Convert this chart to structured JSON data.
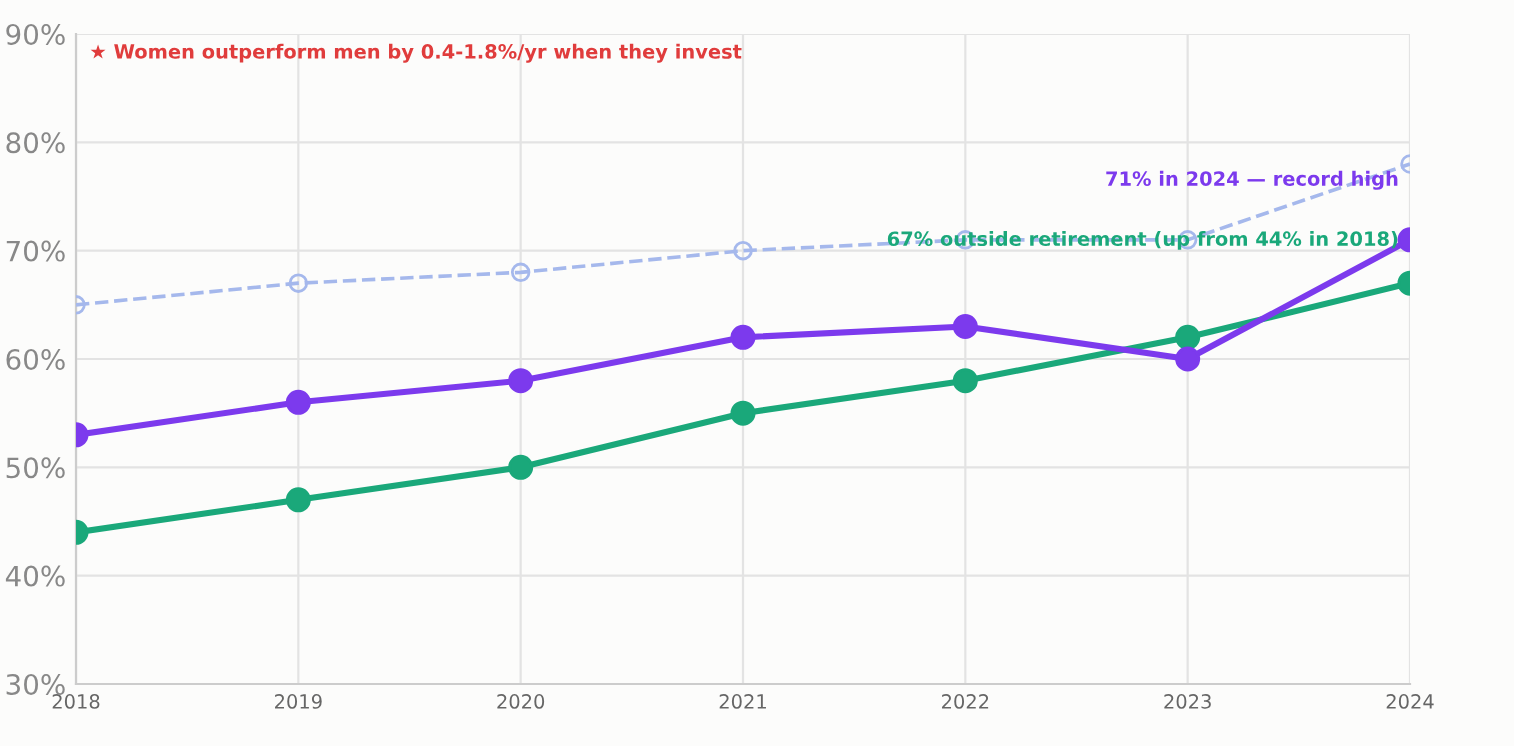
{
  "chart_data": {
    "type": "line",
    "x": [
      2018,
      2019,
      2020,
      2021,
      2022,
      2023,
      2024
    ],
    "xlim": [
      2018,
      2024
    ],
    "xticks": [
      2018,
      2019,
      2020,
      2021,
      2022,
      2023,
      2024
    ],
    "ylim": [
      30,
      90
    ],
    "yticks": [
      {
        "value": 30,
        "label": "30%"
      },
      {
        "value": 40,
        "label": "40%"
      },
      {
        "value": 50,
        "label": "50%"
      },
      {
        "value": 60,
        "label": "60%"
      },
      {
        "value": 70,
        "label": "70%"
      },
      {
        "value": 80,
        "label": "80%"
      },
      {
        "value": 90,
        "label": "90%"
      }
    ],
    "grid": true,
    "legend": false,
    "series": [
      {
        "color": "#a5b8ec",
        "marker": "circle",
        "line_style": "dashed",
        "values": [
          65,
          67,
          68,
          70,
          71,
          71,
          78
        ]
      },
      {
        "color": "#1aa87a",
        "marker": "circle",
        "line_style": "solid",
        "values": [
          44,
          47,
          50,
          55,
          58,
          62,
          67
        ]
      },
      {
        "color": "#7c3aed",
        "marker": "circle",
        "line_style": "solid",
        "values": [
          53,
          56,
          58,
          62,
          63,
          60,
          71
        ]
      }
    ],
    "annotations": [
      "★ Women outperform men by 0.4-1.8%/yr when they invest",
      {
        "text": "71% in 2024 — record high",
        "x": 2024,
        "y": 71
      },
      {
        "text": "67% outside retirement (up from 44% in 2018)",
        "x": 2024,
        "y": 67
      }
    ]
  }
}
